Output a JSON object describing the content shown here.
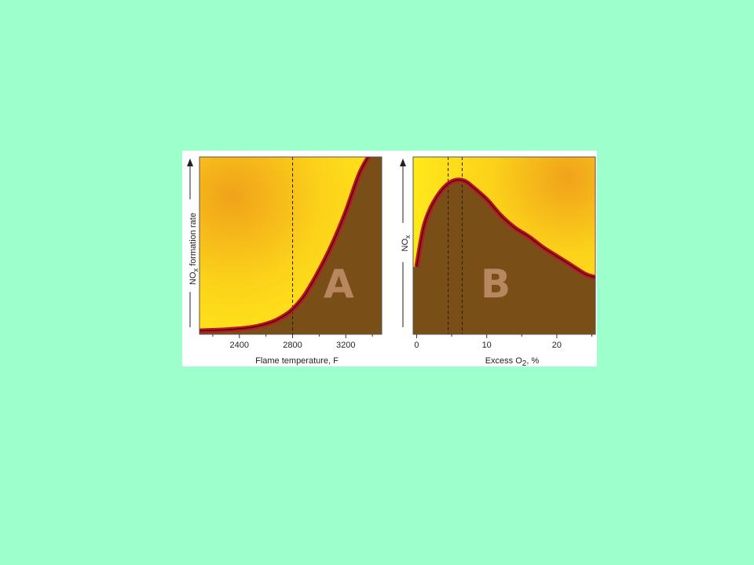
{
  "colors": {
    "background": "#9cffcc",
    "panel_bg": "#ffffff",
    "hot_center": "#f0a21a",
    "hot_edge": "#ffe81a",
    "area_fill": "#7a4e17",
    "curve_outer": "#c4112a",
    "curve_inner": "#2a1a06",
    "letter": "#b8875f"
  },
  "chart_data": [
    {
      "type": "area",
      "panel_letter": "A",
      "title": "",
      "xlabel": "Flame temperature, F",
      "ylabel_main": "NO",
      "ylabel_sub": "x",
      "ylabel_rest": " formation rate",
      "xlim": [
        2100,
        3470
      ],
      "ylim": [
        0,
        1
      ],
      "xticks": [
        2400,
        2800,
        3200
      ],
      "xtick_minor": [
        2200,
        2600,
        3000,
        3400
      ],
      "xtick_labels": [
        "2400",
        "2800",
        "3200"
      ],
      "reference_lines": [
        2800
      ],
      "grid": false,
      "series": [
        {
          "x": [
            2100,
            2300,
            2500,
            2650,
            2750,
            2800,
            2850,
            2900,
            3000,
            3100,
            3200,
            3300,
            3370
          ],
          "y": [
            0.02,
            0.025,
            0.04,
            0.07,
            0.11,
            0.14,
            0.18,
            0.23,
            0.36,
            0.51,
            0.69,
            0.9,
            1.0
          ]
        }
      ]
    },
    {
      "type": "area",
      "panel_letter": "B",
      "title": "",
      "xlabel_pre": "Excess O",
      "xlabel_sub": "2",
      "xlabel_post": ", %",
      "ylabel_main": "NO",
      "ylabel_sub": "x",
      "ylabel_rest": "",
      "xlim": [
        -0.5,
        25.5
      ],
      "ylim": [
        0,
        1
      ],
      "xticks": [
        0,
        10,
        20
      ],
      "xtick_minor": [
        5,
        15,
        25
      ],
      "xtick_labels": [
        "0",
        "10",
        "20"
      ],
      "reference_lines": [
        4.5,
        6.5
      ],
      "grid": false,
      "series": [
        {
          "x": [
            0,
            1,
            2,
            3,
            4,
            5,
            6,
            7,
            8,
            10,
            12,
            14,
            16,
            18,
            20,
            22,
            24,
            25.5
          ],
          "y": [
            0.38,
            0.6,
            0.71,
            0.78,
            0.83,
            0.86,
            0.87,
            0.86,
            0.83,
            0.76,
            0.67,
            0.6,
            0.55,
            0.49,
            0.44,
            0.39,
            0.34,
            0.32
          ]
        }
      ]
    }
  ]
}
